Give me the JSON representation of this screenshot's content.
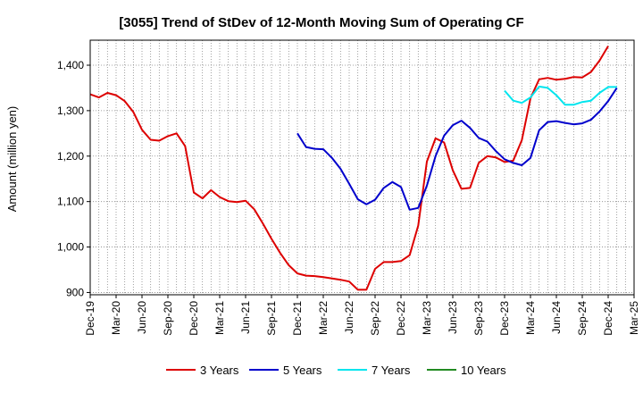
{
  "chart_data": {
    "type": "line",
    "title": "[3055]  Trend of StDev of 12-Month Moving Sum of Operating CF",
    "ylabel": "Amount (million yen)",
    "xlabel": "",
    "ylim": [
      895,
      1455
    ],
    "yticks": [
      900,
      1000,
      1100,
      1200,
      1300,
      1400
    ],
    "ytick_labels": [
      "900",
      "1,000",
      "1,100",
      "1,200",
      "1,300",
      "1,400"
    ],
    "x_tick_labels": [
      "Dec-19",
      "Mar-20",
      "Jun-20",
      "Sep-20",
      "Dec-20",
      "Mar-21",
      "Jun-21",
      "Sep-21",
      "Dec-21",
      "Mar-22",
      "Jun-22",
      "Sep-22",
      "Dec-22",
      "Mar-23",
      "Jun-23",
      "Sep-23",
      "Dec-23",
      "Mar-24",
      "Jun-24",
      "Sep-24",
      "Dec-24",
      "Mar-25"
    ],
    "grid": true,
    "legend_position": "bottom",
    "series": [
      {
        "name": "3 Years",
        "color": "#dd0000",
        "start_index": 0,
        "values": [
          1336,
          1329,
          1339,
          1334,
          1321,
          1297,
          1258,
          1236,
          1234,
          1244,
          1250,
          1222,
          1120,
          1107,
          1125,
          1110,
          1101,
          1099,
          1102,
          1083,
          1052,
          1018,
          987,
          960,
          942,
          937,
          936,
          934,
          931,
          928,
          924,
          906,
          906,
          952,
          967,
          967,
          969,
          982,
          1047,
          1188,
          1239,
          1230,
          1169,
          1128,
          1130,
          1185,
          1200,
          1197,
          1187,
          1190,
          1235,
          1327,
          1369,
          1372,
          1368,
          1370,
          1374,
          1373,
          1385,
          1410,
          1442
        ]
      },
      {
        "name": "5 Years",
        "color": "#0000cc",
        "start_index": 24,
        "values": [
          1250,
          1220,
          1216,
          1215,
          1196,
          1172,
          1139,
          1105,
          1094,
          1104,
          1130,
          1143,
          1132,
          1082,
          1086,
          1135,
          1200,
          1245,
          1268,
          1278,
          1262,
          1240,
          1232,
          1211,
          1193,
          1185,
          1180,
          1196,
          1257,
          1275,
          1277,
          1273,
          1270,
          1272,
          1280,
          1298,
          1321,
          1350
        ]
      },
      {
        "name": "7 Years",
        "color": "#00e5ee",
        "start_index": 48,
        "values": [
          1344,
          1322,
          1317,
          1329,
          1353,
          1350,
          1334,
          1313,
          1313,
          1319,
          1322,
          1339,
          1352,
          1352
        ]
      },
      {
        "name": "10 Years",
        "color": "#228b22",
        "start_index": 0,
        "values": []
      }
    ]
  }
}
